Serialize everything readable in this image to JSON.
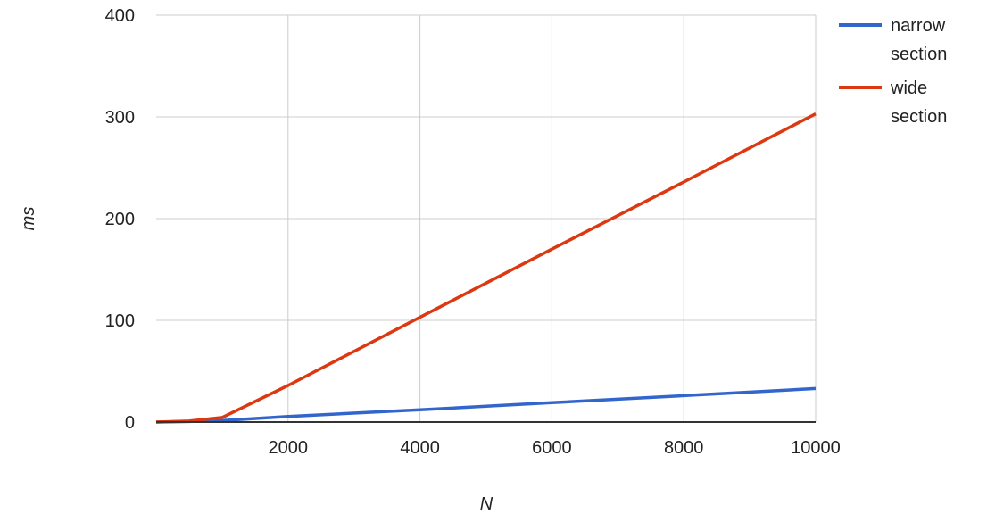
{
  "chart_data": {
    "type": "line",
    "title": "",
    "xlabel": "N",
    "ylabel": "ms",
    "xlim": [
      0,
      10000
    ],
    "ylim": [
      0,
      400
    ],
    "xticks": [
      2000,
      4000,
      6000,
      8000,
      10000
    ],
    "yticks": [
      0,
      100,
      200,
      300,
      400
    ],
    "grid": true,
    "legend": "right",
    "x": [
      0,
      500,
      1000,
      2000,
      4000,
      6000,
      8000,
      10000
    ],
    "series": [
      {
        "name": "narrow section",
        "color": "#3366cc",
        "values": [
          0,
          0.5,
          1.5,
          5.5,
          12,
          19,
          26,
          33
        ]
      },
      {
        "name": "wide section",
        "color": "#dc3912",
        "values": [
          0,
          1,
          4.5,
          36,
          103,
          170,
          236,
          303
        ]
      }
    ]
  }
}
